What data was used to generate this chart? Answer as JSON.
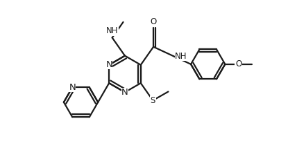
{
  "background_color": "#ffffff",
  "line_color": "#1a1a1a",
  "line_width": 1.6,
  "font_size": 8.5,
  "figsize": [
    4.28,
    2.14
  ],
  "dpi": 100,
  "xlim": [
    0.0,
    10.0
  ],
  "ylim": [
    0.0,
    5.0
  ]
}
